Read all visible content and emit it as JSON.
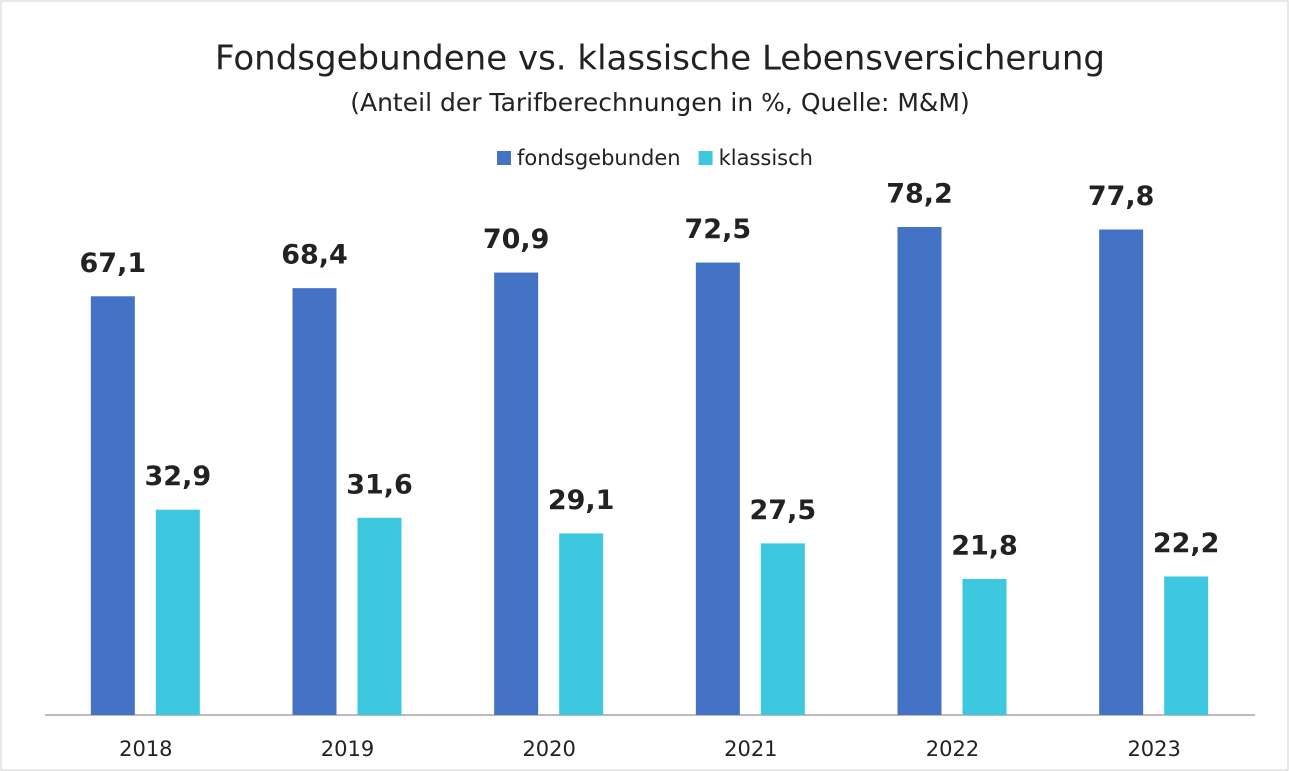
{
  "chart_data": {
    "type": "bar",
    "title": "Fondsgebundene vs. klassische Lebensversicherung",
    "subtitle": "(Anteil der Tarifberechnungen in %, Quelle: M&M)",
    "categories": [
      "2018",
      "2019",
      "2020",
      "2021",
      "2022",
      "2023"
    ],
    "series": [
      {
        "name": "fondsgebunden",
        "color": "#4472c4",
        "values": [
          67.1,
          68.4,
          70.9,
          72.5,
          78.2,
          77.8
        ],
        "value_labels": [
          "67,1",
          "68,4",
          "70,9",
          "72,5",
          "78,2",
          "77,8"
        ]
      },
      {
        "name": "klassisch",
        "color": "#3ec8e0",
        "values": [
          32.9,
          31.6,
          29.1,
          27.5,
          21.8,
          22.2
        ],
        "value_labels": [
          "32,9",
          "31,6",
          "29,1",
          "27,5",
          "21,8",
          "22,2"
        ]
      }
    ],
    "legend": "top"
  }
}
